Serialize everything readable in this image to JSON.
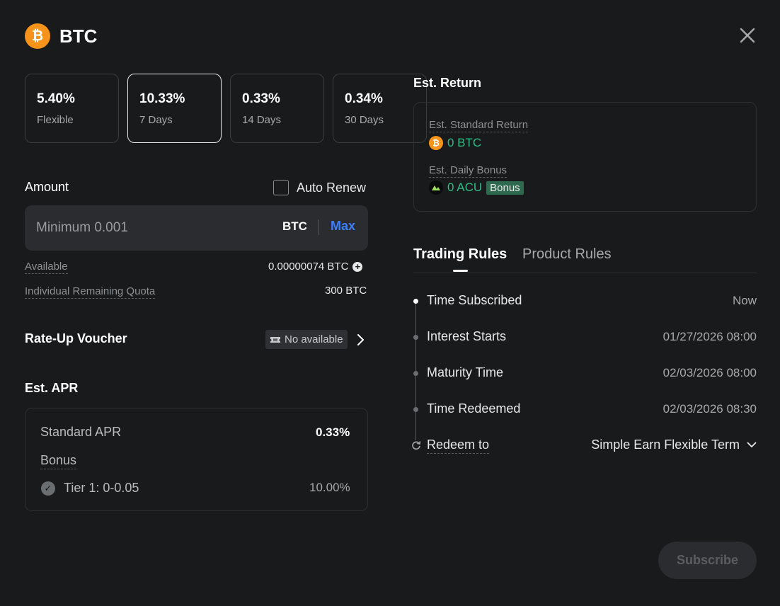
{
  "header": {
    "coin_symbol_glyph": "₿",
    "title": "BTC"
  },
  "terms": [
    {
      "rate": "5.40%",
      "label": "Flexible",
      "selected": false
    },
    {
      "rate": "10.33%",
      "label": "7 Days",
      "selected": true
    },
    {
      "rate": "0.33%",
      "label": "14 Days",
      "selected": false
    },
    {
      "rate": "0.34%",
      "label": "30 Days",
      "selected": false
    }
  ],
  "amount": {
    "label": "Amount",
    "auto_renew_label": "Auto Renew",
    "auto_renew_checked": false,
    "placeholder": "Minimum 0.001",
    "value": "",
    "unit": "BTC",
    "max_label": "Max"
  },
  "available": {
    "label": "Available",
    "value": "0.00000074 BTC"
  },
  "quota": {
    "label": "Individual Remaining Quota",
    "value": "300 BTC"
  },
  "voucher": {
    "label": "Rate-Up Voucher",
    "status": "No available"
  },
  "est_apr": {
    "label": "Est. APR",
    "standard_label": "Standard APR",
    "standard_value": "0.33%",
    "bonus_label": "Bonus",
    "tier_label": "Tier 1: 0-0.05",
    "tier_value": "10.00%"
  },
  "est_return": {
    "title": "Est. Return",
    "standard_label": "Est. Standard Return",
    "standard_value": "0 BTC",
    "daily_bonus_label": "Est. Daily Bonus",
    "daily_bonus_value": "0 ACU",
    "bonus_tag": "Bonus"
  },
  "tabs": [
    {
      "label": "Trading Rules",
      "active": true
    },
    {
      "label": "Product Rules",
      "active": false
    }
  ],
  "timeline": [
    {
      "label": "Time Subscribed",
      "value": "Now"
    },
    {
      "label": "Interest Starts",
      "value": "01/27/2026 08:00"
    },
    {
      "label": "Maturity Time",
      "value": "02/03/2026 08:00"
    },
    {
      "label": "Time Redeemed",
      "value": "02/03/2026 08:30"
    }
  ],
  "redeem": {
    "label": "Redeem to",
    "value": "Simple Earn Flexible Term"
  },
  "subscribe_label": "Subscribe",
  "colors": {
    "accent_blue": "#3d7dff",
    "positive_green": "#2ebd85",
    "btc_orange": "#f7931a",
    "background": "#181a1b"
  }
}
